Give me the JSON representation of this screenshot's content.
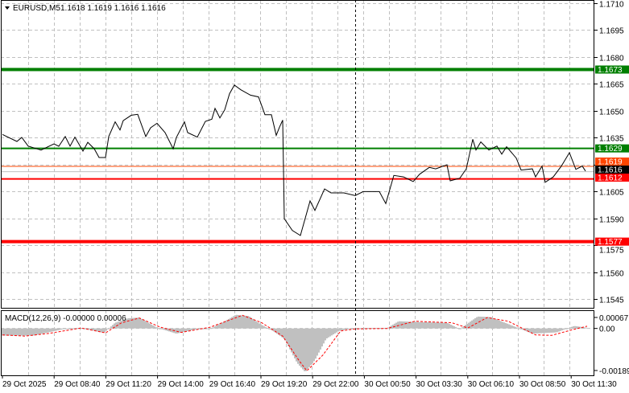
{
  "header": {
    "symbol": "EURUSD,M5",
    "ohlc": "1.1618 1.1619 1.1616 1.1616",
    "menu_icon": "triangle-down-icon"
  },
  "colors": {
    "price_line": "#000000",
    "support_resistance_green": "#007f00",
    "support_resistance_red": "#ff0000",
    "ask_line": "#ff4500",
    "bid_line": "#c0c0c0",
    "grid": "#c0c0c0",
    "macd_histogram": "#c0c0c0",
    "macd_signal": "#ff0000"
  },
  "chart_data": [
    {
      "type": "line",
      "title": "EURUSD,M5",
      "ylim": [
        1.1545,
        1.171
      ],
      "grid": true,
      "y_ticks": [
        "1.1710",
        "1.1695",
        "1.1680",
        "1.1665",
        "1.1650",
        "1.1635",
        "1.1620",
        "1.1605",
        "1.1590",
        "1.1575",
        "1.1560",
        "1.1545"
      ],
      "x_ticks": [
        "29 Oct 2025",
        "29 Oct 08:40",
        "29 Oct 11:20",
        "29 Oct 14:00",
        "29 Oct 16:40",
        "29 Oct 19:20",
        "29 Oct 22:00",
        "30 Oct 00:50",
        "30 Oct 03:30",
        "30 Oct 06:10",
        "30 Oct 08:50",
        "30 Oct 11:30"
      ],
      "crosshair_time": "30 Oct 00:15",
      "levels": [
        {
          "price": 1.1673,
          "label": "1.1673",
          "color": "#007f00",
          "weight": "thick"
        },
        {
          "price": 1.1629,
          "label": "1.1629",
          "color": "#007f00",
          "weight": "normal"
        },
        {
          "price": 1.1612,
          "label": "1.1612",
          "color": "#ff0000",
          "weight": "normal"
        },
        {
          "price": 1.1577,
          "label": "1.1577",
          "color": "#ff0000",
          "weight": "thick"
        }
      ],
      "ask": {
        "price": 1.1619,
        "label": "1.1619",
        "color": "#ff4500"
      },
      "bid": {
        "price": 1.1616,
        "label": "1.1616",
        "color": "#000000"
      },
      "series": [
        {
          "values": [
            [
              "29 Oct 06:00",
              1.16368
            ],
            [
              "29 Oct 06:45",
              1.16329
            ],
            [
              "29 Oct 07:00",
              1.16351
            ],
            [
              "29 Oct 07:20",
              1.16303
            ],
            [
              "29 Oct 08:00",
              1.16281
            ],
            [
              "29 Oct 08:40",
              1.16315
            ],
            [
              "29 Oct 08:55",
              1.16302
            ],
            [
              "29 Oct 09:15",
              1.16356
            ],
            [
              "29 Oct 09:30",
              1.16303
            ],
            [
              "29 Oct 09:45",
              1.16353
            ],
            [
              "29 Oct 10:10",
              1.16275
            ],
            [
              "29 Oct 10:25",
              1.16324
            ],
            [
              "29 Oct 10:45",
              1.16288
            ],
            [
              "29 Oct 11:00",
              1.16239
            ],
            [
              "29 Oct 11:20",
              1.16239
            ],
            [
              "29 Oct 11:30",
              1.16356
            ],
            [
              "29 Oct 11:50",
              1.16438
            ],
            [
              "29 Oct 12:05",
              1.16393
            ],
            [
              "29 Oct 12:15",
              1.16445
            ],
            [
              "29 Oct 12:40",
              1.16475
            ],
            [
              "29 Oct 13:00",
              1.1648
            ],
            [
              "29 Oct 13:25",
              1.16356
            ],
            [
              "29 Oct 13:40",
              1.16405
            ],
            [
              "29 Oct 14:00",
              1.1643
            ],
            [
              "29 Oct 14:25",
              1.16378
            ],
            [
              "29 Oct 14:50",
              1.16288
            ],
            [
              "29 Oct 15:00",
              1.16351
            ],
            [
              "29 Oct 15:25",
              1.16438
            ],
            [
              "29 Oct 15:35",
              1.16378
            ],
            [
              "29 Oct 16:05",
              1.16353
            ],
            [
              "29 Oct 16:30",
              1.16441
            ],
            [
              "29 Oct 16:50",
              1.16453
            ],
            [
              "29 Oct 17:00",
              1.16513
            ],
            [
              "29 Oct 17:15",
              1.1646
            ],
            [
              "29 Oct 17:30",
              1.16505
            ],
            [
              "29 Oct 17:45",
              1.16595
            ],
            [
              "29 Oct 18:00",
              1.16643
            ],
            [
              "29 Oct 18:20",
              1.16617
            ],
            [
              "29 Oct 18:50",
              1.16587
            ],
            [
              "29 Oct 19:15",
              1.16577
            ],
            [
              "29 Oct 19:35",
              1.16478
            ],
            [
              "29 Oct 19:55",
              1.16478
            ],
            [
              "29 Oct 20:10",
              1.16363
            ],
            [
              "29 Oct 20:20",
              1.16408
            ],
            [
              "29 Oct 20:30",
              1.16448
            ],
            [
              "29 Oct 20:35",
              1.15898
            ],
            [
              "29 Oct 21:00",
              1.15832
            ],
            [
              "29 Oct 21:25",
              1.15804
            ],
            [
              "29 Oct 21:55",
              1.15997
            ],
            [
              "29 Oct 22:10",
              1.15944
            ],
            [
              "29 Oct 22:40",
              1.16064
            ],
            [
              "29 Oct 23:00",
              1.16042
            ],
            [
              "29 Oct 23:40",
              1.16042
            ],
            [
              "30 Oct 00:15",
              1.16027
            ],
            [
              "30 Oct 00:40",
              1.16049
            ],
            [
              "30 Oct 01:30",
              1.16049
            ],
            [
              "30 Oct 01:50",
              1.15982
            ],
            [
              "30 Oct 02:15",
              1.16139
            ],
            [
              "30 Oct 02:45",
              1.16131
            ],
            [
              "30 Oct 03:15",
              1.16105
            ],
            [
              "30 Oct 03:35",
              1.16146
            ],
            [
              "30 Oct 04:05",
              1.16184
            ],
            [
              "30 Oct 04:25",
              1.16176
            ],
            [
              "30 Oct 05:00",
              1.16199
            ],
            [
              "30 Oct 05:10",
              1.16109
            ],
            [
              "30 Oct 05:40",
              1.16124
            ],
            [
              "30 Oct 06:00",
              1.16176
            ],
            [
              "30 Oct 06:20",
              1.16341
            ],
            [
              "30 Oct 06:30",
              1.16281
            ],
            [
              "30 Oct 06:45",
              1.16326
            ],
            [
              "30 Oct 07:10",
              1.16281
            ],
            [
              "30 Oct 07:35",
              1.16303
            ],
            [
              "30 Oct 07:50",
              1.16258
            ],
            [
              "30 Oct 08:05",
              1.16299
            ],
            [
              "30 Oct 08:35",
              1.16236
            ],
            [
              "30 Oct 08:50",
              1.16169
            ],
            [
              "30 Oct 09:25",
              1.16176
            ],
            [
              "30 Oct 09:35",
              1.16131
            ],
            [
              "30 Oct 09:55",
              1.16191
            ],
            [
              "30 Oct 10:05",
              1.16101
            ],
            [
              "30 Oct 10:30",
              1.16131
            ],
            [
              "30 Oct 10:55",
              1.16191
            ],
            [
              "30 Oct 11:20",
              1.16266
            ],
            [
              "30 Oct 11:40",
              1.16173
            ],
            [
              "30 Oct 12:00",
              1.16191
            ],
            [
              "30 Oct 12:10",
              1.16164
            ]
          ]
        }
      ]
    },
    {
      "type": "bar",
      "title": "MACD(12,26,9) -0.00000 0.00006",
      "ylim": [
        -0.00189,
        0.00067
      ],
      "y_ticks": [
        "0.00067",
        "0.00",
        "-0.00189"
      ],
      "histogram": [
        [
          "29 Oct 06:00",
          -0.00029
        ],
        [
          "29 Oct 07:35",
          -0.00029
        ],
        [
          "29 Oct 09:20",
          0.0
        ],
        [
          "29 Oct 10:05",
          2e-05
        ],
        [
          "29 Oct 11:15",
          -0.00018
        ],
        [
          "29 Oct 11:50",
          0.00023
        ],
        [
          "29 Oct 12:30",
          0.00041
        ],
        [
          "29 Oct 13:05",
          0.00044
        ],
        [
          "29 Oct 13:25",
          0.00029
        ],
        [
          "29 Oct 14:00",
          3e-05
        ],
        [
          "29 Oct 15:00",
          -0.00021
        ],
        [
          "29 Oct 15:55",
          -5e-05
        ],
        [
          "29 Oct 16:50",
          2e-05
        ],
        [
          "29 Oct 17:30",
          0.00029
        ],
        [
          "29 Oct 18:05",
          0.00055
        ],
        [
          "29 Oct 18:45",
          0.0005
        ],
        [
          "29 Oct 19:20",
          0.00018
        ],
        [
          "29 Oct 20:00",
          -0.0001
        ],
        [
          "29 Oct 20:35",
          -0.00042
        ],
        [
          "29 Oct 21:15",
          -0.00139
        ],
        [
          "29 Oct 21:40",
          -0.00176
        ],
        [
          "29 Oct 22:10",
          -0.00128
        ],
        [
          "29 Oct 22:45",
          -0.00042
        ],
        [
          "29 Oct 23:25",
          -0.0001
        ],
        [
          "30 Oct 00:00",
          -2e-05
        ],
        [
          "30 Oct 00:40",
          2e-05
        ],
        [
          "30 Oct 01:55",
          2e-05
        ],
        [
          "30 Oct 02:30",
          0.00029
        ],
        [
          "30 Oct 03:30",
          0.00026
        ],
        [
          "30 Oct 05:00",
          0.00023
        ],
        [
          "30 Oct 05:40",
          -2e-05
        ],
        [
          "30 Oct 06:35",
          0.00048
        ],
        [
          "30 Oct 07:15",
          0.00046
        ],
        [
          "30 Oct 08:10",
          0.00018
        ],
        [
          "30 Oct 09:25",
          -0.00021
        ],
        [
          "30 Oct 10:40",
          -0.00016
        ],
        [
          "30 Oct 11:35",
          0.0001
        ],
        [
          "30 Oct 12:15",
          3e-05
        ]
      ],
      "signal": [
        [
          "29 Oct 06:00",
          -0.00026
        ],
        [
          "29 Oct 07:10",
          -0.00031
        ],
        [
          "29 Oct 08:25",
          -0.0002
        ],
        [
          "29 Oct 10:05",
          2e-05
        ],
        [
          "29 Oct 11:20",
          -0.00018
        ],
        [
          "29 Oct 12:10",
          0.00023
        ],
        [
          "29 Oct 13:05",
          0.00042
        ],
        [
          "29 Oct 14:10",
          5e-05
        ],
        [
          "29 Oct 15:15",
          -0.00016
        ],
        [
          "29 Oct 16:45",
          5e-05
        ],
        [
          "29 Oct 18:25",
          0.00053
        ],
        [
          "29 Oct 19:25",
          0.00023
        ],
        [
          "29 Oct 20:30",
          -0.00031
        ],
        [
          "29 Oct 21:20",
          -0.00128
        ],
        [
          "29 Oct 21:45",
          -0.00171
        ],
        [
          "29 Oct 22:35",
          -0.00107
        ],
        [
          "29 Oct 23:30",
          -0.0001
        ],
        [
          "30 Oct 00:15",
          -2e-05
        ],
        [
          "30 Oct 01:55",
          0.0
        ],
        [
          "30 Oct 03:20",
          0.00029
        ],
        [
          "30 Oct 05:15",
          0.00023
        ],
        [
          "30 Oct 06:05",
          2e-05
        ],
        [
          "30 Oct 07:05",
          0.00044
        ],
        [
          "30 Oct 08:10",
          0.00029
        ],
        [
          "30 Oct 09:35",
          -0.00026
        ],
        [
          "30 Oct 10:25",
          -0.00028
        ],
        [
          "30 Oct 11:30",
          -5e-05
        ],
        [
          "30 Oct 12:15",
          9e-05
        ]
      ]
    }
  ]
}
